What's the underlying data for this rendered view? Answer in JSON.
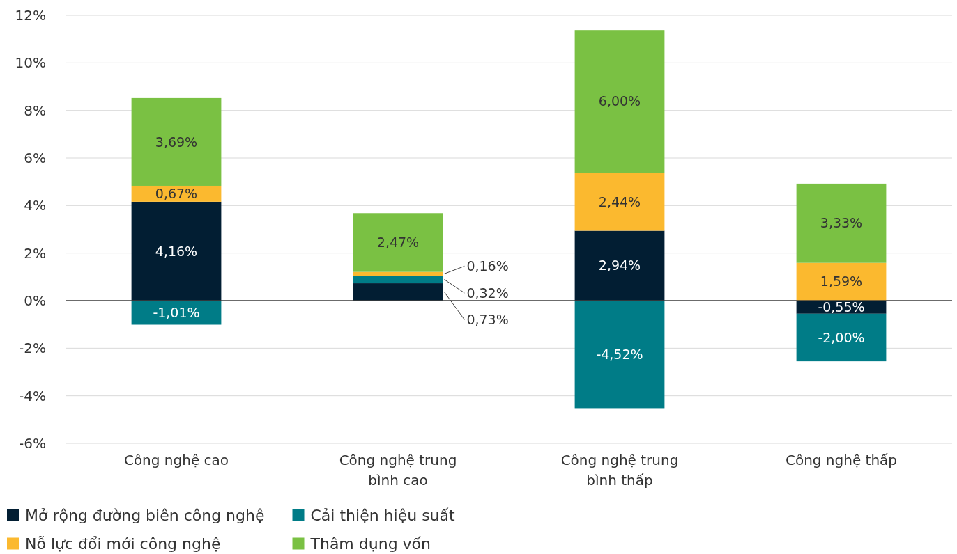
{
  "chart_data": {
    "type": "bar",
    "stacked": true,
    "categories": [
      "Công nghệ cao",
      "Công nghệ trung bình cao",
      "Công nghệ trung bình thấp",
      "Công nghệ thấp"
    ],
    "series": [
      {
        "name": "Mở rộng đường biên công nghệ",
        "color": "#021e33",
        "values": [
          4.16,
          0.73,
          2.94,
          -0.55
        ],
        "value_labels": [
          "4,16%",
          "0,73%",
          "2,94%",
          "-0,55%"
        ]
      },
      {
        "name": "Cải thiện hiệu suất",
        "color": "#007c87",
        "values": [
          -1.01,
          0.32,
          -4.52,
          -2.0
        ],
        "value_labels": [
          "-1,01%",
          "0,32%",
          "-4,52%",
          "-2,00%"
        ]
      },
      {
        "name": "Nỗ lực đổi mới công nghệ",
        "color": "#fbb92f",
        "values": [
          0.67,
          0.16,
          2.44,
          1.59
        ],
        "value_labels": [
          "0,67%",
          "0,16%",
          "2,44%",
          "1,59%"
        ]
      },
      {
        "name": "Thâm dụng vốn",
        "color": "#7ac143",
        "values": [
          3.69,
          2.47,
          6.0,
          3.33
        ],
        "value_labels": [
          "3,69%",
          "2,47%",
          "6,00%",
          "3,33%"
        ]
      }
    ],
    "ylim": [
      -6,
      12
    ],
    "yticks": [
      {
        "value": -6,
        "label": "-6%"
      },
      {
        "value": -4,
        "label": "-4%"
      },
      {
        "value": -2,
        "label": "-2%"
      },
      {
        "value": 0,
        "label": "0%"
      },
      {
        "value": 2,
        "label": "2%"
      },
      {
        "value": 4,
        "label": "4%"
      },
      {
        "value": 6,
        "label": "6%"
      },
      {
        "value": 8,
        "label": "8%"
      },
      {
        "value": 10,
        "label": "10%"
      },
      {
        "value": 12,
        "label": "12%"
      }
    ],
    "grid": "y",
    "legend": "bottom"
  }
}
